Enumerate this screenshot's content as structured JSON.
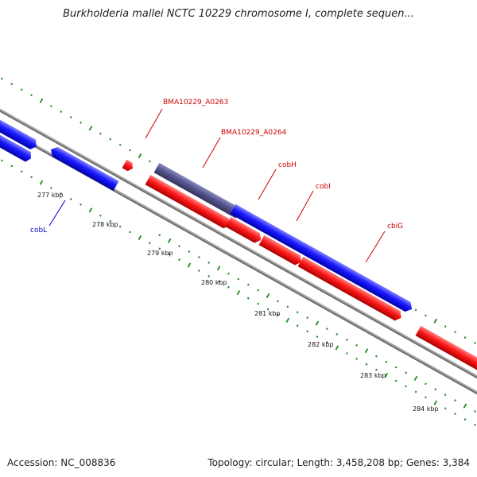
{
  "title": "Burkholderia mallei NCTC 10229 chromosome I, complete sequen...",
  "footer": {
    "accession": "Accession: NC_008836",
    "summary": "Topology: circular; Length: 3,458,208 bp; Genes: 3,384"
  },
  "colors": {
    "forward_gene": "#1a1aff",
    "reverse_gene": "#ff1a1a",
    "highlight_gene": "#55558f",
    "backbone": "#8c8c8c",
    "tick": "#1e8c1e",
    "label_red": "#cc0000",
    "label_blue": "#0000cc"
  },
  "scale_labels": [
    "277 kbp",
    "278 kbp",
    "279 kbp",
    "280 kbp",
    "281 kbp",
    "282 kbp",
    "283 kbp",
    "284 kbp"
  ],
  "gene_labels": [
    {
      "name": "BMA10229_A0263",
      "color": "red"
    },
    {
      "name": "BMA10229_A0264",
      "color": "red"
    },
    {
      "name": "cobH",
      "color": "red"
    },
    {
      "name": "cobI",
      "color": "red"
    },
    {
      "name": "cbiG",
      "color": "red"
    },
    {
      "name": "cobL",
      "color": "blue"
    }
  ]
}
